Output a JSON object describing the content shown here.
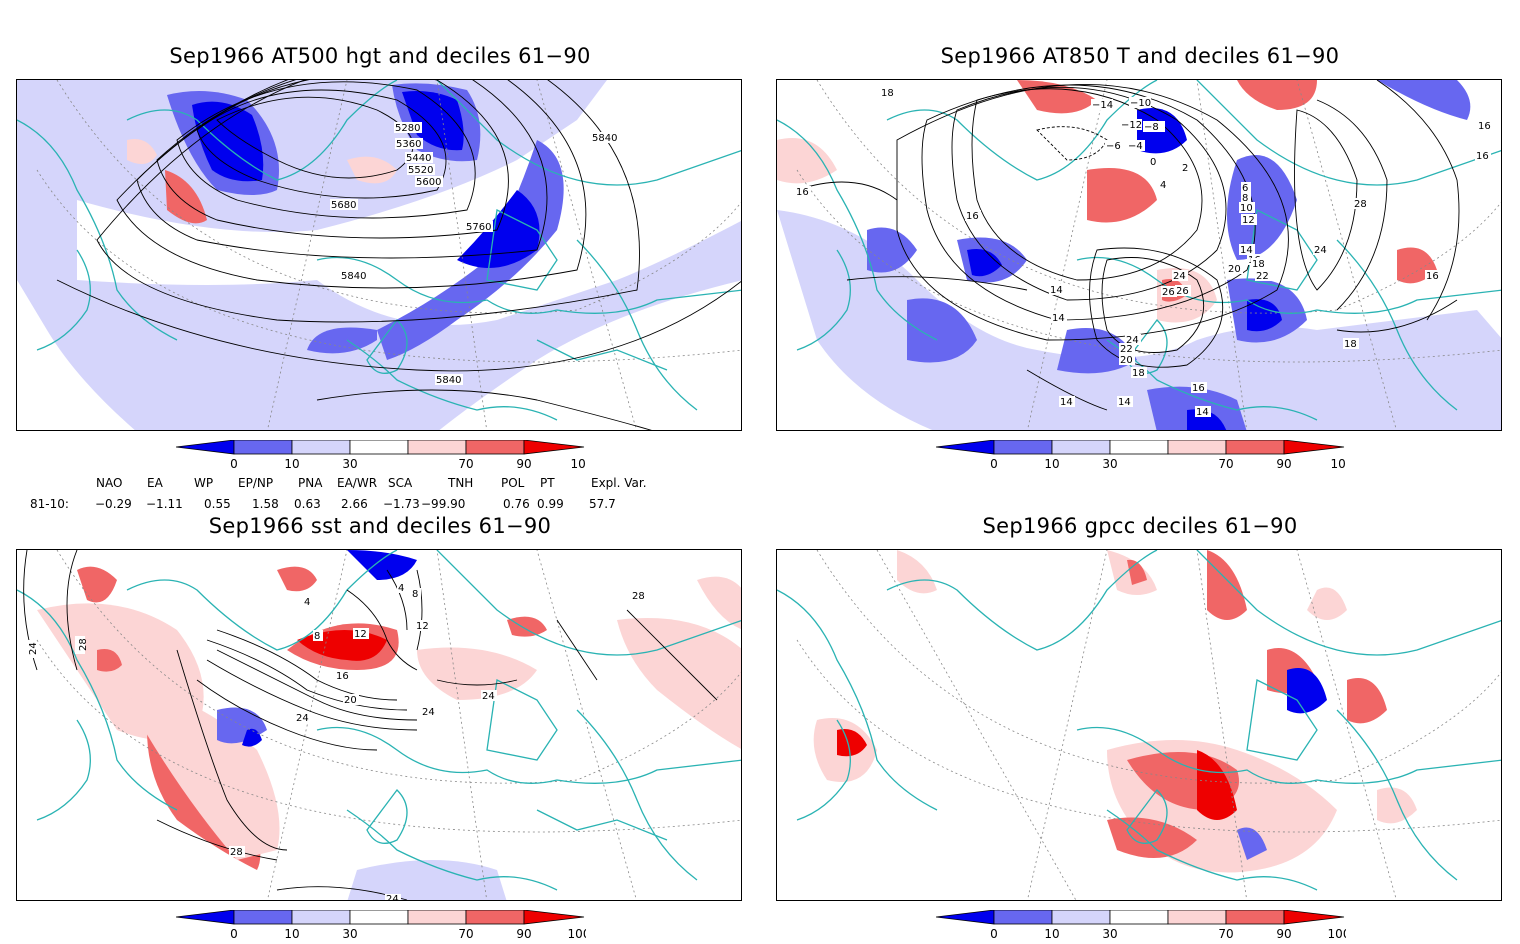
{
  "panels": [
    {
      "id": "p1",
      "title": "Sep1966 AT500 hgt and deciles 61−90",
      "contour_labels": [
        "5280",
        "5360",
        "5440",
        "5520",
        "5600",
        "5680",
        "5760",
        "5840",
        "5840",
        "5840"
      ]
    },
    {
      "id": "p2",
      "title": "Sep1966 AT850 T and deciles 61−90",
      "contour_labels": [
        "18",
        "−10",
        "−14",
        "−12",
        "−8",
        "−6",
        "−4",
        "0",
        "2",
        "4",
        "6",
        "8",
        "10",
        "12",
        "14",
        "16",
        "18",
        "20",
        "22",
        "24",
        "26",
        "28",
        "24",
        "16",
        "16",
        "16",
        "18",
        "16",
        "14",
        "14",
        "14",
        "14",
        "20",
        "22",
        "24",
        "26",
        "18",
        "16",
        "14",
        "16"
      ]
    },
    {
      "id": "p3",
      "title": "Sep1966 sst and deciles 61−90",
      "contour_labels": [
        "24",
        "28",
        "4",
        "8",
        "12",
        "4",
        "8",
        "12",
        "16",
        "20",
        "24",
        "24",
        "24",
        "28",
        "28",
        "24"
      ]
    },
    {
      "id": "p4",
      "title": "Sep1966 gpcc deciles 61−90",
      "contour_labels": []
    }
  ],
  "colorbar": {
    "ticks": [
      "0",
      "10",
      "30",
      "70",
      "90",
      "100"
    ],
    "colors": [
      "#0000ee",
      "#6767f0",
      "#d5d5fb",
      "#ffffff",
      "#fcd5d5",
      "#f06666",
      "#ee0000"
    ]
  },
  "indices": {
    "headers": [
      "NAO",
      "EA",
      "WP",
      "EP/NP",
      "PNA",
      "EA/WR",
      "SCA",
      "TNH",
      "POL",
      "PT",
      "Expl. Var."
    ],
    "row_label": "81-10:",
    "values": [
      "−0.29",
      "−1.11",
      "0.55",
      "1.58",
      "0.63",
      "2.66",
      "−1.73",
      "−99.90",
      "0.76",
      "0.99",
      "57.7"
    ]
  },
  "colors": {
    "coast": "#2ab3b3",
    "contour": "#000000",
    "grid": "#888888"
  }
}
